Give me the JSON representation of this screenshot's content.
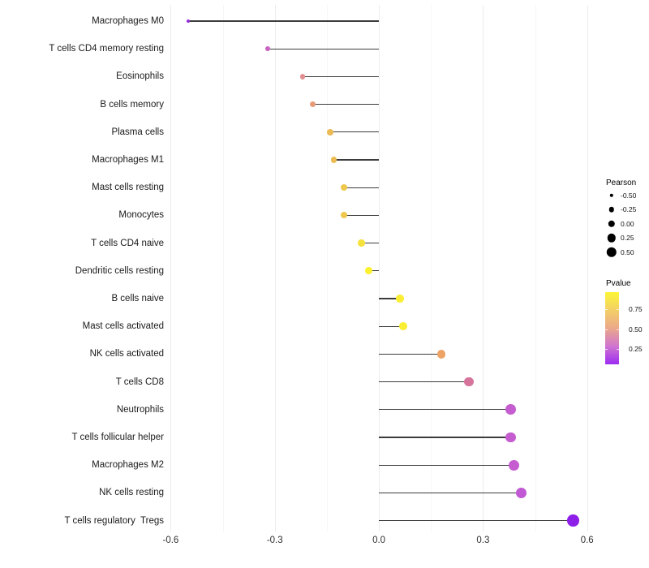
{
  "chart_data": {
    "type": "scatter",
    "subtype": "lollipop",
    "title": "",
    "xlabel": "",
    "ylabel": "",
    "grid": "vertical-only",
    "baseline_x": 0,
    "xlim": [
      -0.608,
      0.617
    ],
    "x_ticks": [
      {
        "value": -0.6,
        "label": "-0.6"
      },
      {
        "value": -0.3,
        "label": "-0.3"
      },
      {
        "value": 0.0,
        "label": "0.0"
      },
      {
        "value": 0.3,
        "label": "0.3"
      },
      {
        "value": 0.6,
        "label": "0.6"
      }
    ],
    "x_minor_ticks": [
      -0.45,
      -0.15,
      0.15,
      0.45
    ],
    "stem_color": "#3c3c3c",
    "points": [
      {
        "label": "Macrophages M0",
        "pearson": -0.55,
        "color": "#9430da"
      },
      {
        "label": "T cells CD4 memory resting",
        "pearson": -0.32,
        "color": "#ca62c2"
      },
      {
        "label": "Eosinophils",
        "pearson": -0.22,
        "color": "#e28f90"
      },
      {
        "label": "B cells memory",
        "pearson": -0.19,
        "color": "#e69b7b"
      },
      {
        "label": "Plasma cells",
        "pearson": -0.14,
        "color": "#ecbb56"
      },
      {
        "label": "Macrophages M1",
        "pearson": -0.13,
        "color": "#ecbc53"
      },
      {
        "label": "Mast cells resting",
        "pearson": -0.1,
        "color": "#edc84d"
      },
      {
        "label": "Monocytes",
        "pearson": -0.1,
        "color": "#edc84d"
      },
      {
        "label": "T cells CD4 naive",
        "pearson": -0.05,
        "color": "#f5e23c"
      },
      {
        "label": "Dendritic cells resting",
        "pearson": -0.03,
        "color": "#fbf12e"
      },
      {
        "label": "B cells naive",
        "pearson": 0.06,
        "color": "#f9ee33"
      },
      {
        "label": "Mast cells activated",
        "pearson": 0.07,
        "color": "#f9ee33"
      },
      {
        "label": "NK cells activated",
        "pearson": 0.18,
        "color": "#eda366"
      },
      {
        "label": "T cells CD8",
        "pearson": 0.26,
        "color": "#d6749c"
      },
      {
        "label": "Neutrophils",
        "pearson": 0.38,
        "color": "#c55cd0"
      },
      {
        "label": "T cells follicular helper",
        "pearson": 0.38,
        "color": "#c55cd0"
      },
      {
        "label": "Macrophages M2",
        "pearson": 0.39,
        "color": "#c55cd0"
      },
      {
        "label": "NK cells resting",
        "pearson": 0.41,
        "color": "#c159d4"
      },
      {
        "label": "T cells regulatory  Tregs",
        "pearson": 0.56,
        "color": "#8d1fe9"
      }
    ],
    "legends": {
      "size": {
        "title": "Pearson",
        "dot_color": "#000000",
        "entries": [
          {
            "label": "-0.50",
            "value": -0.5
          },
          {
            "label": "-0.25",
            "value": -0.25
          },
          {
            "label": "0.00",
            "value": 0.0
          },
          {
            "label": "0.25",
            "value": 0.25
          },
          {
            "label": "0.50",
            "value": 0.5
          }
        ]
      },
      "color": {
        "title": "Pvalue",
        "gradient_stops": [
          "#fcf636",
          "#f3cf66",
          "#eba88a",
          "#cf74cf",
          "#9d2cf2"
        ],
        "ticks": [
          {
            "label": "0.75",
            "pct": 24
          },
          {
            "label": "0.50",
            "pct": 52
          },
          {
            "label": "0.25",
            "pct": 79
          }
        ]
      }
    }
  }
}
